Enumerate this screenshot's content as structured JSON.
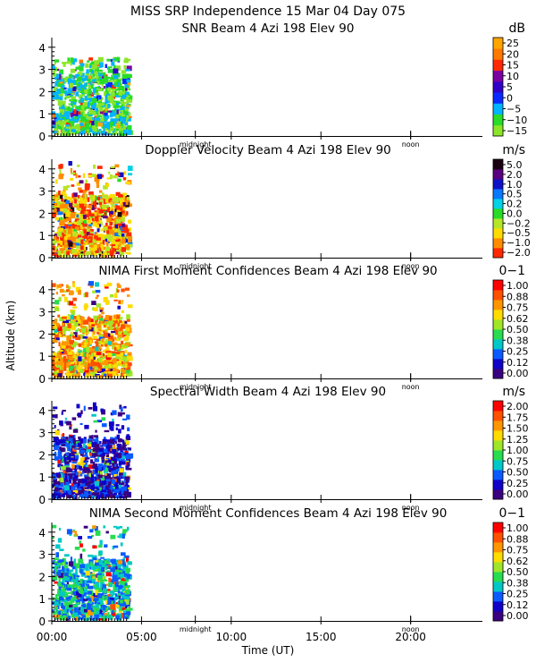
{
  "header": {
    "title_line1": "MISS SRP Independence  15 Mar 04 Day 075"
  },
  "axes": {
    "ylabel": "Altitude (km)",
    "xlabel": "Time (UT)",
    "x_range_hours": [
      0,
      24
    ],
    "y_range_km": [
      0,
      4.4
    ],
    "y_ticks": [
      "0",
      "1",
      "2",
      "3",
      "4"
    ],
    "x_ticks": [
      {
        "hour": 0,
        "label": "00:00"
      },
      {
        "hour": 5,
        "label": "05:00"
      },
      {
        "hour": 10,
        "label": "10:00"
      },
      {
        "hour": 15,
        "label": "15:00"
      },
      {
        "hour": 20,
        "label": "20:00"
      }
    ],
    "markers": [
      {
        "hour": 8,
        "label": "midnight"
      },
      {
        "hour": 20,
        "label": "noon"
      }
    ]
  },
  "chart_data": [
    {
      "type": "heatmap",
      "title": "SNR Beam 4 Azi 198 Elev 90",
      "unit": "dB",
      "colorbar_ticks": [
        "25",
        "20",
        "15",
        "10",
        "5",
        "0",
        "−5",
        "−10",
        "−15"
      ],
      "colorbar_colors": [
        "#ffa500",
        "#ff7800",
        "#ff2800",
        "#7a00a0",
        "#3000c8",
        "#0a28ff",
        "#00b4ff",
        "#28dc28",
        "#8ce628"
      ],
      "data_time_range_hours": [
        0,
        4.25
      ],
      "data_altitude_range_km": [
        0,
        3.4
      ],
      "dominant_colors": [
        "#8ce628",
        "#28dc28",
        "#00b4ff"
      ]
    },
    {
      "type": "heatmap",
      "title": "Doppler Velocity Beam 4 Azi 198 Elev 90",
      "unit": "m/s",
      "colorbar_ticks": [
        "5.0",
        "2.0",
        "1.0",
        "0.5",
        "0.2",
        "0.0",
        "−0.2",
        "−0.5",
        "−1.0",
        "−2.0"
      ],
      "colorbar_colors": [
        "#1a0010",
        "#5a0080",
        "#1010c8",
        "#0a78ff",
        "#00d2e6",
        "#28dc28",
        "#b4e628",
        "#ffdc00",
        "#ff8c00",
        "#ff2800"
      ],
      "data_time_range_hours": [
        0,
        4.25
      ],
      "data_altitude_range_km": [
        0,
        4.2
      ],
      "dominant_colors": [
        "#ffdc00",
        "#ff8c00",
        "#ff2800",
        "#b4e628"
      ]
    },
    {
      "type": "heatmap",
      "title": "NIMA First Moment Confidences Beam 4 Azi 198 Elev 90",
      "unit": "0−1",
      "colorbar_ticks": [
        "1.00",
        "0.88",
        "0.75",
        "0.62",
        "0.50",
        "0.38",
        "0.25",
        "0.12",
        "0.00"
      ],
      "colorbar_colors": [
        "#ff0000",
        "#ff5000",
        "#ff9600",
        "#ffdc00",
        "#a0e628",
        "#28dc50",
        "#00c8c8",
        "#0a5aff",
        "#1000c8",
        "#3a0080"
      ],
      "data_time_range_hours": [
        0,
        4.25
      ],
      "data_altitude_range_km": [
        0,
        4.2
      ],
      "dominant_colors": [
        "#ff9600",
        "#ff5000",
        "#ffdc00",
        "#a0e628"
      ]
    },
    {
      "type": "heatmap",
      "title": "Spectral Width Beam 4 Azi 198 Elev 90",
      "unit": "m/s",
      "colorbar_ticks": [
        "2.00",
        "1.75",
        "1.50",
        "1.25",
        "1.00",
        "0.75",
        "0.50",
        "0.25",
        "0.00"
      ],
      "colorbar_colors": [
        "#ff0000",
        "#ff5000",
        "#ff9600",
        "#ffdc00",
        "#a0e628",
        "#28dc50",
        "#00c8c8",
        "#0a5aff",
        "#1000c8",
        "#3a0080"
      ],
      "data_time_range_hours": [
        0,
        4.25
      ],
      "data_altitude_range_km": [
        0,
        4.2
      ],
      "dominant_colors": [
        "#1000c8",
        "#0a5aff",
        "#3a0080"
      ]
    },
    {
      "type": "heatmap",
      "title": "NIMA Second Moment Confidences Beam 4 Azi 198 Elev 90",
      "unit": "0−1",
      "colorbar_ticks": [
        "1.00",
        "0.88",
        "0.75",
        "0.62",
        "0.50",
        "0.38",
        "0.25",
        "0.12",
        "0.00"
      ],
      "colorbar_colors": [
        "#ff0000",
        "#ff5000",
        "#ff9600",
        "#ffdc00",
        "#a0e628",
        "#28dc50",
        "#00c8c8",
        "#0a5aff",
        "#1000c8",
        "#3a0080"
      ],
      "data_time_range_hours": [
        0,
        4.25
      ],
      "data_altitude_range_km": [
        0,
        4.2
      ],
      "dominant_colors": [
        "#00c8c8",
        "#28dc50",
        "#0a5aff"
      ]
    }
  ]
}
